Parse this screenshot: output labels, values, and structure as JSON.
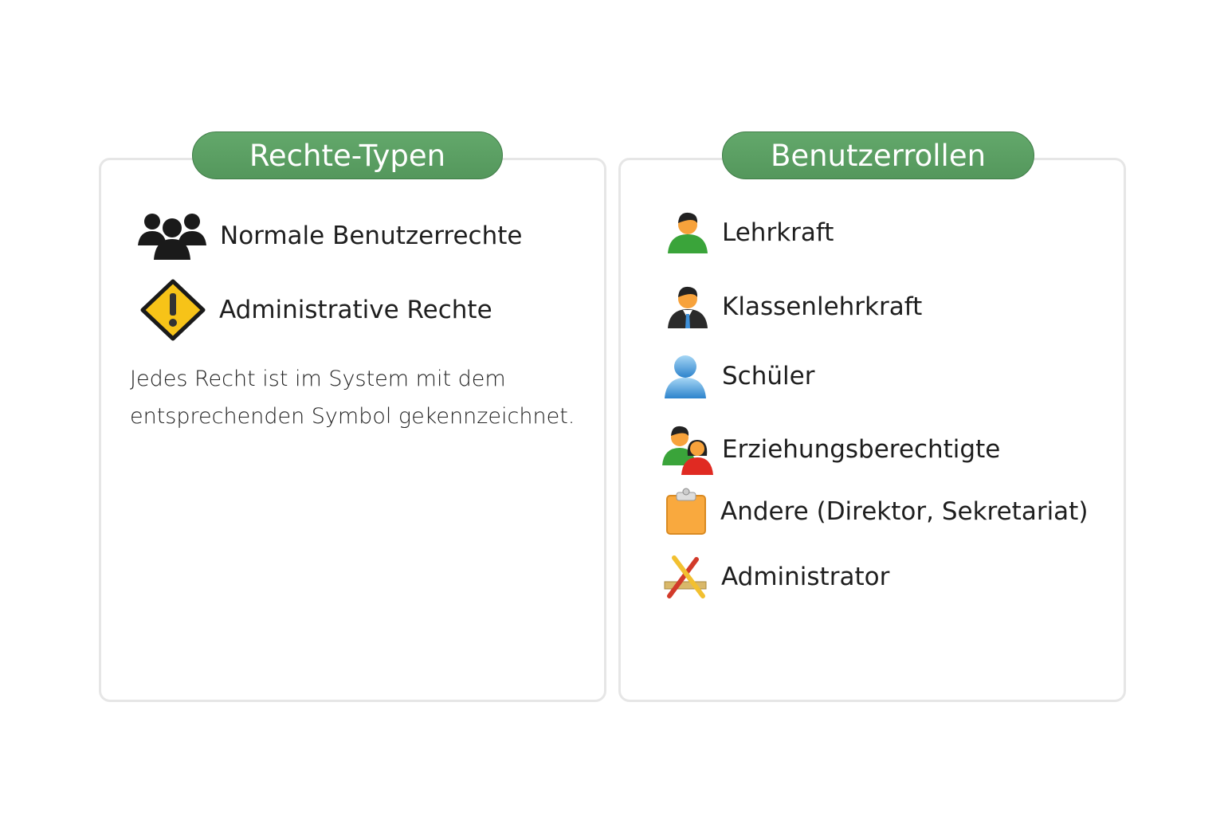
{
  "left_panel": {
    "title": "Rechte-Typen",
    "items": [
      {
        "label": "Normale Benutzerrechte",
        "icon": "user-group-icon"
      },
      {
        "label": "Administrative Rechte",
        "icon": "warning-icon"
      }
    ],
    "note": "Jedes Recht ist im System mit dem entsprechenden Symbol gekennzeichnet."
  },
  "right_panel": {
    "title": "Benutzerrollen",
    "items": [
      {
        "label": "Lehrkraft",
        "icon": "teacher-icon"
      },
      {
        "label": "Klassenlehrkraft",
        "icon": "class-teacher-icon"
      },
      {
        "label": "Schüler",
        "icon": "student-icon"
      },
      {
        "label": "Erziehungsberechtigte",
        "icon": "parents-icon"
      },
      {
        "label": "Andere (Direktor, Sekretariat)",
        "icon": "clipboard-icon"
      },
      {
        "label": "Administrator",
        "icon": "tools-icon"
      }
    ]
  },
  "colors": {
    "header_green": "#5a9e63",
    "border": "#e6e6e6"
  }
}
